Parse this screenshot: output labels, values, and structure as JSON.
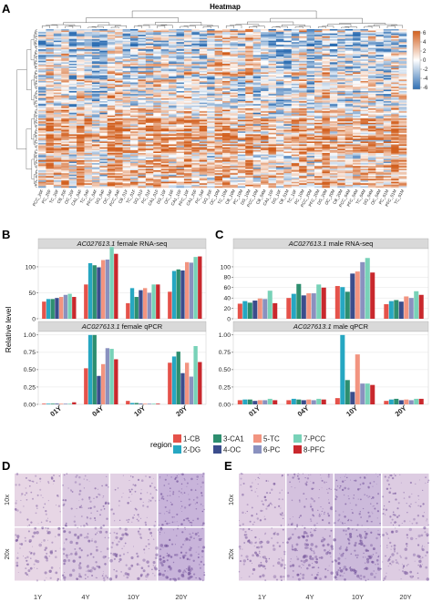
{
  "panels": {
    "A": {
      "label": "A"
    },
    "B": {
      "label": "B"
    },
    "C": {
      "label": "C"
    },
    "D": {
      "label": "D"
    },
    "E": {
      "label": "E"
    }
  },
  "heatmap": {
    "title": "Heatmap",
    "n_rows": 110,
    "n_cols": 48,
    "palette": {
      "low": "#2f6fb3",
      "mid": "#ffffff",
      "high": "#d2601f"
    },
    "colorbar": {
      "ticks": [
        "6",
        "4",
        "2",
        "0",
        "-2",
        "-4",
        "-6"
      ],
      "range": [
        -6,
        6
      ]
    },
    "column_labels": [
      "PCC_20F",
      "PC_20F",
      "TC_20F",
      "CB_20F",
      "OC_20F",
      "CA1_04F",
      "TC_04F",
      "PFC_04F",
      "DG_04F",
      "OC_04F",
      "PCC_04F",
      "CB_01F",
      "TC_01F",
      "DG_01F",
      "PC_01F",
      "CA1_01F",
      "DG_10F",
      "OC_10F",
      "CA1_10F",
      "PFC_10F",
      "CA1_20F",
      "PC_04F",
      "DG_20F",
      "OC_10M",
      "TC_10M",
      "CB_10M",
      "PC_10M",
      "DG_10M",
      "PCC_10M",
      "CB_04M",
      "CA1_10F",
      "DG_10F",
      "CB_01M",
      "TC_10F",
      "PC_10M",
      "PCC_20M",
      "PFC_20M",
      "DG_20M",
      "OC_20M",
      "CB_20M",
      "PCC_04M",
      "PFC_04M",
      "TC_04M",
      "DG_04M",
      "OC_04M",
      "PC_01M",
      "PFC_01M",
      "TC_01M"
    ]
  },
  "legend": {
    "title": "region",
    "items": [
      {
        "label": "1-CB",
        "color": "#e5524a"
      },
      {
        "label": "2-DG",
        "color": "#26a7c2"
      },
      {
        "label": "3-CA1",
        "color": "#2d8e6f"
      },
      {
        "label": "4-OC",
        "color": "#3b4d8c"
      },
      {
        "label": "5-TC",
        "color": "#f29480"
      },
      {
        "label": "6-PC",
        "color": "#8a91bf"
      },
      {
        "label": "7-PCC",
        "color": "#78d2b8"
      },
      {
        "label": "8-PFC",
        "color": "#c9282d"
      }
    ]
  },
  "y_axis_label": "Relative level",
  "chart_data": [
    {
      "type": "bar",
      "strip": "AC027613.1 female RNA-seq",
      "strip_gene": "AC027613.1",
      "strip_rest": "female RNA-seq",
      "categories": [
        "01Y",
        "04Y",
        "10Y",
        "20Y"
      ],
      "ylim": [
        0,
        135
      ],
      "yticks": [
        0,
        50,
        100
      ],
      "ytick_labels": [
        "0",
        "50",
        "100"
      ],
      "series": [
        {
          "name": "1-CB",
          "values": [
            33,
            66,
            30,
            52
          ]
        },
        {
          "name": "2-DG",
          "values": [
            38,
            107,
            59,
            92
          ]
        },
        {
          "name": "3-CA1",
          "values": [
            38,
            103,
            42,
            95
          ]
        },
        {
          "name": "4-OC",
          "values": [
            40,
            99,
            55,
            93
          ]
        },
        {
          "name": "5-TC",
          "values": [
            42,
            113,
            59,
            109
          ]
        },
        {
          "name": "6-PC",
          "values": [
            46,
            114,
            50,
            108
          ]
        },
        {
          "name": "7-PCC",
          "values": [
            48,
            138,
            66,
            119
          ]
        },
        {
          "name": "8-PFC",
          "values": [
            42,
            125,
            66,
            120
          ]
        }
      ]
    },
    {
      "type": "bar",
      "strip": "AC027613.1 female qPCR",
      "strip_gene": "AC027613.1",
      "strip_rest": "female qPCR",
      "categories": [
        "01Y",
        "04Y",
        "10Y",
        "20Y"
      ],
      "ylim": [
        0,
        1.05
      ],
      "yticks": [
        0,
        0.25,
        0.5,
        0.75,
        1.0
      ],
      "ytick_labels": [
        "0.00",
        "0.25",
        "0.50",
        "0.75",
        "1.00"
      ],
      "series": [
        {
          "name": "1-CB",
          "values": [
            0.01,
            0.52,
            0.05,
            0.6
          ]
        },
        {
          "name": "2-DG",
          "values": [
            0.01,
            1.0,
            0.02,
            0.69
          ]
        },
        {
          "name": "3-CA1",
          "values": [
            0.01,
            1.0,
            0.02,
            0.76
          ]
        },
        {
          "name": "4-OC",
          "values": [
            0.01,
            0.41,
            0.01,
            0.45
          ]
        },
        {
          "name": "5-TC",
          "values": [
            0.01,
            0.58,
            0.01,
            0.6
          ]
        },
        {
          "name": "6-PC",
          "values": [
            0.01,
            0.81,
            0.01,
            0.4
          ]
        },
        {
          "name": "7-PCC",
          "values": [
            0.01,
            0.8,
            0.01,
            0.84
          ]
        },
        {
          "name": "8-PFC",
          "values": [
            0.03,
            0.65,
            0.01,
            0.61
          ]
        }
      ]
    },
    {
      "type": "bar",
      "strip": "AC027613.1 male RNA-seq",
      "strip_gene": "AC027613.1",
      "strip_rest": "male RNA-seq",
      "categories": [
        "01Y",
        "04Y",
        "10Y",
        "20Y"
      ],
      "ylim": [
        0,
        135
      ],
      "yticks": [
        0,
        20,
        40,
        60,
        80,
        100
      ],
      "ytick_labels": [
        "0",
        "20",
        "40",
        "60",
        "80",
        "100"
      ],
      "series": [
        {
          "name": "1-CB",
          "values": [
            29,
            40,
            63,
            28
          ]
        },
        {
          "name": "2-DG",
          "values": [
            34,
            48,
            61,
            34
          ]
        },
        {
          "name": "3-CA1",
          "values": [
            31,
            67,
            52,
            36
          ]
        },
        {
          "name": "4-OC",
          "values": [
            35,
            45,
            87,
            33
          ]
        },
        {
          "name": "5-TC",
          "values": [
            39,
            49,
            91,
            43
          ]
        },
        {
          "name": "6-PC",
          "values": [
            38,
            49,
            109,
            40
          ]
        },
        {
          "name": "7-PCC",
          "values": [
            54,
            66,
            117,
            53
          ]
        },
        {
          "name": "8-PFC",
          "values": [
            30,
            60,
            89,
            46
          ]
        }
      ]
    },
    {
      "type": "bar",
      "strip": "AC027613.1 male qPCR",
      "strip_gene": "AC027613.1",
      "strip_rest": "male qPCR",
      "categories": [
        "01Y",
        "04Y",
        "10Y",
        "20Y"
      ],
      "ylim": [
        0,
        1.05
      ],
      "yticks": [
        0,
        0.25,
        0.5,
        0.75,
        1.0
      ],
      "ytick_labels": [
        "0.00",
        "0.25",
        "0.50",
        "0.75",
        "1.00"
      ],
      "series": [
        {
          "name": "1-CB",
          "values": [
            0.06,
            0.06,
            0.09,
            0.05
          ]
        },
        {
          "name": "2-DG",
          "values": [
            0.07,
            0.08,
            1.0,
            0.07
          ]
        },
        {
          "name": "3-CA1",
          "values": [
            0.07,
            0.07,
            0.35,
            0.08
          ]
        },
        {
          "name": "4-OC",
          "values": [
            0.05,
            0.06,
            0.18,
            0.06
          ]
        },
        {
          "name": "5-TC",
          "values": [
            0.06,
            0.07,
            0.72,
            0.07
          ]
        },
        {
          "name": "6-PC",
          "values": [
            0.06,
            0.06,
            0.3,
            0.06
          ]
        },
        {
          "name": "7-PCC",
          "values": [
            0.08,
            0.08,
            0.3,
            0.08
          ]
        },
        {
          "name": "8-PFC",
          "values": [
            0.06,
            0.07,
            0.28,
            0.08
          ]
        }
      ]
    }
  ],
  "ish": {
    "D": {
      "row_labels": [
        "10x",
        "20x"
      ],
      "col_labels": [
        "1Y",
        "4Y",
        "10Y",
        "20Y"
      ],
      "stain": [
        0.15,
        0.35,
        0.25,
        0.8
      ]
    },
    "E": {
      "row_labels": [
        "10x",
        "20x"
      ],
      "col_labels": [
        "1Y",
        "4Y",
        "10Y",
        "20Y"
      ],
      "stain": [
        0.3,
        0.55,
        0.7,
        0.35
      ]
    }
  }
}
